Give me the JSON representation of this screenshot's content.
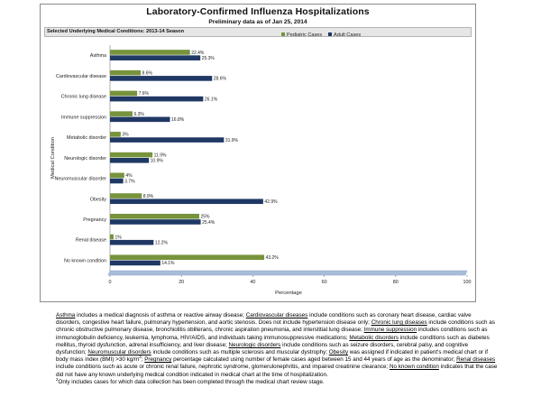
{
  "title": "Laboratory-Confirmed Influenza Hospitalizations",
  "subtitle": "Preliminary data as of Jan 25, 2014",
  "panel_header": "Selected Underlying Medical Conditions: 2013-14 Season",
  "colors": {
    "pediatric": "#77933c",
    "adult": "#1f3864",
    "axis": "#a9bcd9"
  },
  "chart_data": {
    "type": "bar",
    "orientation": "horizontal",
    "categories": [
      "Asthma",
      "Cardiovascular disease",
      "Chronic lung disease",
      "Immune suppression",
      "Metabolic disorder",
      "Neurologic disorder",
      "Neuromuscular disorder",
      "Obesity",
      "Pregnancy",
      "Renal disease",
      "No known condition"
    ],
    "series": [
      {
        "name": "Pediatric Cases",
        "values": [
          22.4,
          8.6,
          7.6,
          6.3,
          3,
          11.9,
          4,
          8.9,
          25,
          1,
          43.2
        ],
        "labels": [
          "22.4%",
          "8.6%",
          "7.6%",
          "6.3%",
          "3%",
          "11.9%",
          "4%",
          "8.9%",
          "25%",
          "1%",
          "43.2%"
        ]
      },
      {
        "name": "Adult Cases",
        "values": [
          25.3,
          28.6,
          26.1,
          16.8,
          31.9,
          10.9,
          3.7,
          42.9,
          25.4,
          12.2,
          14.1
        ],
        "labels": [
          "25.3%",
          "28.6%",
          "26.1%",
          "16.8%",
          "31.9%",
          "10.9%",
          "3.7%",
          "42.9%",
          "25.4%",
          "12.2%",
          "14.1%"
        ]
      }
    ],
    "xlabel": "Percentage",
    "ylabel": "Medical Condition",
    "xlim": [
      0,
      100
    ],
    "xticks": [
      "0",
      "20",
      "40",
      "60",
      "80",
      "100"
    ],
    "legend": "top-right",
    "grid": false
  },
  "footnote": {
    "asthma_term": "Asthma",
    "asthma_text": " includes a medical diagnosis of asthma or reactive airway disease; ",
    "cardio_term": "Cardiovascular diseases",
    "cardio_text": " include conditions such as coronary heart disease, cardiac valve disorders, congestive heart failure, pulmonary hypertension, and aortic stenosis.  Does not include hypertension disease only; ",
    "lung_term": "Chronic lung diseases",
    "lung_text": " include conditions such as chronic obstructive pulmonary disease, bronchiolitis obliterans, chronic aspiration pneumonia, and interstitial lung disease; ",
    "immune_term": "Immune suppression",
    "immune_text": " includes conditions such as immunoglobulin deficiency, leukemia, lymphoma, HIV/AIDS, and individuals taking immunosuppressive medications; ",
    "metabolic_term": "Metabolic disorders",
    "metabolic_text": " include conditions such as diabetes mellitus, thyroid dysfunction, adrenal insufficiency, and liver disease; ",
    "neuro_term": "Neurologic disorders",
    "neuro_text": " include conditions such as seizure disorders, cerebral palsy, and cognitive dysfunction; ",
    "neuromusc_term": "Neuromuscular disorders",
    "neuromusc_text": " include conditions such as multiple sclerosis and muscular dystrophy; ",
    "obesity_term": "Obesity",
    "obesity_text": " was assigned if indicated in patient's medical chart or if body mass index (BMI) >30 kg/m",
    "obesity_sup": "2",
    "obesity_end": "; ",
    "pregnancy_term": "Pregnancy",
    "pregnancy_text": " percentage calculated using number of female cases aged between 15 and 44 years of age as the denominator; ",
    "renal_term": "Renal diseases",
    "renal_text": " include conditions such as acute or chronic renal failure, nephrotic syndrome, glomerulonephritis, and impaired creatinine clearance; ",
    "noknown_term": "No known condition",
    "noknown_text": " indicates that the case did not have any known underlying medical condition indicated in medical chart at the time of hospitalization.",
    "note2_sup": "2",
    "note2_text": "Only includes cases for which data collection has been completed through the medical chart review stage."
  }
}
